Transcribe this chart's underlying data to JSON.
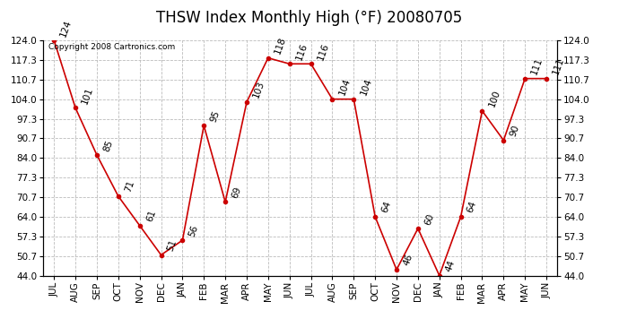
{
  "title": "THSW Index Monthly High (°F) 20080705",
  "copyright": "Copyright 2008 Cartronics.com",
  "months": [
    "JUL",
    "AUG",
    "SEP",
    "OCT",
    "NOV",
    "DEC",
    "JAN",
    "FEB",
    "MAR",
    "APR",
    "MAY",
    "JUN",
    "JUL",
    "AUG",
    "SEP",
    "OCT",
    "NOV",
    "DEC",
    "JAN",
    "FEB",
    "MAR",
    "APR",
    "MAY",
    "JUN"
  ],
  "values": [
    124,
    101,
    85,
    71,
    61,
    51,
    56,
    95,
    69,
    103,
    118,
    116,
    116,
    104,
    104,
    64,
    46,
    60,
    44,
    64,
    100,
    90,
    111,
    111
  ],
  "line_color": "#cc0000",
  "marker_color": "#cc0000",
  "background_color": "#ffffff",
  "grid_color": "#bbbbbb",
  "ylim": [
    44.0,
    124.0
  ],
  "yticks": [
    44.0,
    50.7,
    57.3,
    64.0,
    70.7,
    77.3,
    84.0,
    90.7,
    97.3,
    104.0,
    110.7,
    117.3,
    124.0
  ],
  "title_fontsize": 12,
  "label_fontsize": 7.5,
  "annotation_fontsize": 7.5
}
